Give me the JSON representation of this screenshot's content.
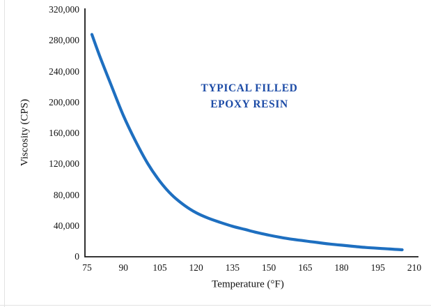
{
  "chart_data": {
    "type": "line",
    "title": "",
    "annotation_lines": [
      "TYPICAL FILLED",
      "EPOXY RESIN"
    ],
    "xlabel": "Temperature (°F)",
    "ylabel": "Viscosity (CPS)",
    "xlim": [
      75,
      210
    ],
    "ylim": [
      0,
      320000
    ],
    "x_ticks": [
      75,
      90,
      105,
      120,
      135,
      150,
      165,
      180,
      195,
      210
    ],
    "y_ticks": [
      {
        "value": 0,
        "label": "0"
      },
      {
        "value": 40000,
        "label": "40,000"
      },
      {
        "value": 80000,
        "label": "80,000"
      },
      {
        "value": 120000,
        "label": "120,000"
      },
      {
        "value": 160000,
        "label": "160,000"
      },
      {
        "value": 200000,
        "label": "200,000"
      },
      {
        "value": 240000,
        "label": "240,000"
      },
      {
        "value": 280000,
        "label": "280,000"
      },
      {
        "value": 320000,
        "label": "320,000"
      }
    ],
    "grid": false,
    "legend": false,
    "colors": {
      "line": "#1e6fc0",
      "annotation": "#1c4ba6",
      "axis": "#1a1a1a"
    },
    "series": [
      {
        "name": "Typical Filled Epoxy Resin",
        "x": [
          77,
          80,
          85,
          90,
          95,
          100,
          105,
          110,
          115,
          120,
          125,
          130,
          135,
          140,
          145,
          150,
          155,
          160,
          165,
          170,
          175,
          180,
          185,
          190,
          195,
          200,
          205
        ],
        "y": [
          288000,
          262000,
          222000,
          183000,
          150000,
          121000,
          98000,
          80000,
          67000,
          57000,
          50000,
          44500,
          39500,
          35500,
          31500,
          28000,
          25000,
          22500,
          20500,
          18500,
          16500,
          15000,
          13500,
          12000,
          11000,
          10000,
          9000
        ]
      }
    ]
  }
}
